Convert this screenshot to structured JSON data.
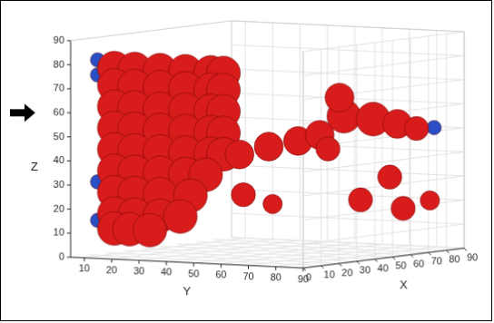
{
  "chart_data": {
    "type": "isosurface",
    "x_label": "X",
    "y_label": "Y",
    "z_label": "Z",
    "xlim": [
      0,
      90
    ],
    "ylim": [
      5,
      90
    ],
    "zlim": [
      0,
      90
    ],
    "xticks": [
      0,
      10,
      20,
      30,
      40,
      50,
      60,
      70,
      80,
      90
    ],
    "yticks": [
      10,
      20,
      30,
      40,
      50,
      60,
      70,
      80,
      90
    ],
    "zticks": [
      0,
      10,
      20,
      30,
      40,
      50,
      60,
      70,
      80,
      90
    ],
    "grid": true,
    "arrow": {
      "z": 60
    },
    "series": [
      {
        "color": "#d81c1c",
        "x": [
          8,
          8,
          8,
          8,
          8,
          8,
          8,
          8,
          8,
          8,
          8,
          8,
          8,
          8,
          8,
          8,
          8,
          8,
          8,
          8,
          8,
          8,
          8,
          8,
          8,
          8,
          8,
          8,
          8,
          8,
          8,
          8,
          8,
          8,
          8,
          8,
          8,
          8,
          8,
          8,
          8,
          8,
          8,
          8,
          8,
          8,
          10,
          20,
          30,
          40,
          50,
          60,
          70,
          80,
          55,
          45,
          60,
          75,
          85,
          70,
          20,
          30
        ],
        "y": [
          12,
          20,
          30,
          40,
          50,
          55,
          12,
          20,
          30,
          40,
          50,
          55,
          12,
          20,
          30,
          40,
          50,
          55,
          12,
          20,
          30,
          40,
          50,
          55,
          12,
          20,
          30,
          40,
          50,
          55,
          12,
          20,
          30,
          40,
          48,
          12,
          20,
          30,
          42,
          12,
          20,
          30,
          38,
          12,
          18,
          26,
          60,
          65,
          70,
          72,
          75,
          80,
          83,
          84,
          70,
          72,
          75,
          82,
          86,
          80,
          55,
          60
        ],
        "z": [
          83,
          83,
          83,
          83,
          83,
          83,
          75,
          75,
          75,
          75,
          75,
          75,
          65,
          65,
          65,
          65,
          65,
          65,
          55,
          55,
          55,
          55,
          55,
          55,
          45,
          45,
          45,
          45,
          45,
          45,
          35,
          35,
          35,
          35,
          35,
          25,
          25,
          25,
          25,
          15,
          15,
          15,
          15,
          8,
          8,
          8,
          45,
          48,
          50,
          52,
          60,
          58,
          55,
          52,
          68,
          45,
          20,
          15,
          18,
          30,
          25,
          20
        ],
        "r": [
          7,
          7,
          7,
          7,
          7,
          7,
          7,
          7,
          7,
          7,
          7,
          7,
          7,
          7,
          7,
          7,
          7,
          7,
          7,
          7,
          7,
          7,
          7,
          7,
          7,
          7,
          7,
          7,
          7,
          7,
          7,
          7,
          7,
          7,
          7,
          7,
          7,
          7,
          7,
          7,
          7,
          7,
          7,
          7,
          7,
          7,
          6,
          6,
          6,
          6,
          7,
          7,
          6,
          5,
          6,
          5,
          5,
          5,
          4,
          5,
          5,
          4
        ]
      },
      {
        "color": "#2a4fc4",
        "x": [
          4,
          4,
          4,
          4,
          4,
          86,
          84
        ],
        "y": [
          8,
          8,
          8,
          8,
          42,
          87,
          87
        ],
        "z": [
          80,
          30,
          12,
          87,
          22,
          52,
          18
        ],
        "r": [
          3,
          3,
          3,
          3,
          3,
          3,
          3
        ]
      }
    ]
  }
}
